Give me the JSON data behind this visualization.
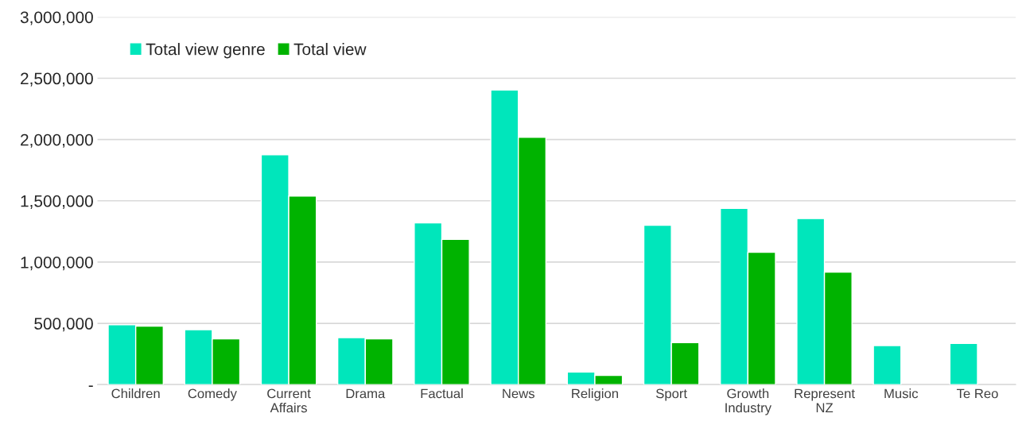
{
  "chart_data": {
    "type": "bar",
    "categories": [
      "Children",
      "Comedy",
      "Current\nAffairs",
      "Drama",
      "Factual",
      "News",
      "Religion",
      "Sport",
      "Growth\nIndustry",
      "Represent\nNZ",
      "Music",
      "Te Reo"
    ],
    "series": [
      {
        "name": "Total view genre",
        "color": "#00e6bb",
        "values": [
          489000,
          448000,
          1876000,
          383000,
          1320000,
          2405000,
          103000,
          1301000,
          1439000,
          1355000,
          319000,
          337000
        ]
      },
      {
        "name": "Total view",
        "color": "#00b300",
        "values": [
          478000,
          373000,
          1539000,
          373000,
          1185000,
          2019000,
          76000,
          343000,
          1080000,
          918000,
          null,
          null
        ]
      }
    ],
    "ylim": [
      0,
      3000000
    ],
    "yticks": [
      {
        "value": 0,
        "label": "-"
      },
      {
        "value": 500000,
        "label": "500,000"
      },
      {
        "value": 1000000,
        "label": "1,000,000"
      },
      {
        "value": 1500000,
        "label": "1,500,000"
      },
      {
        "value": 2000000,
        "label": "2,000,000"
      },
      {
        "value": 2500000,
        "label": "2,500,000"
      },
      {
        "value": 3000000,
        "label": "3,000,000"
      }
    ],
    "grid": "y",
    "legend": "top left"
  }
}
